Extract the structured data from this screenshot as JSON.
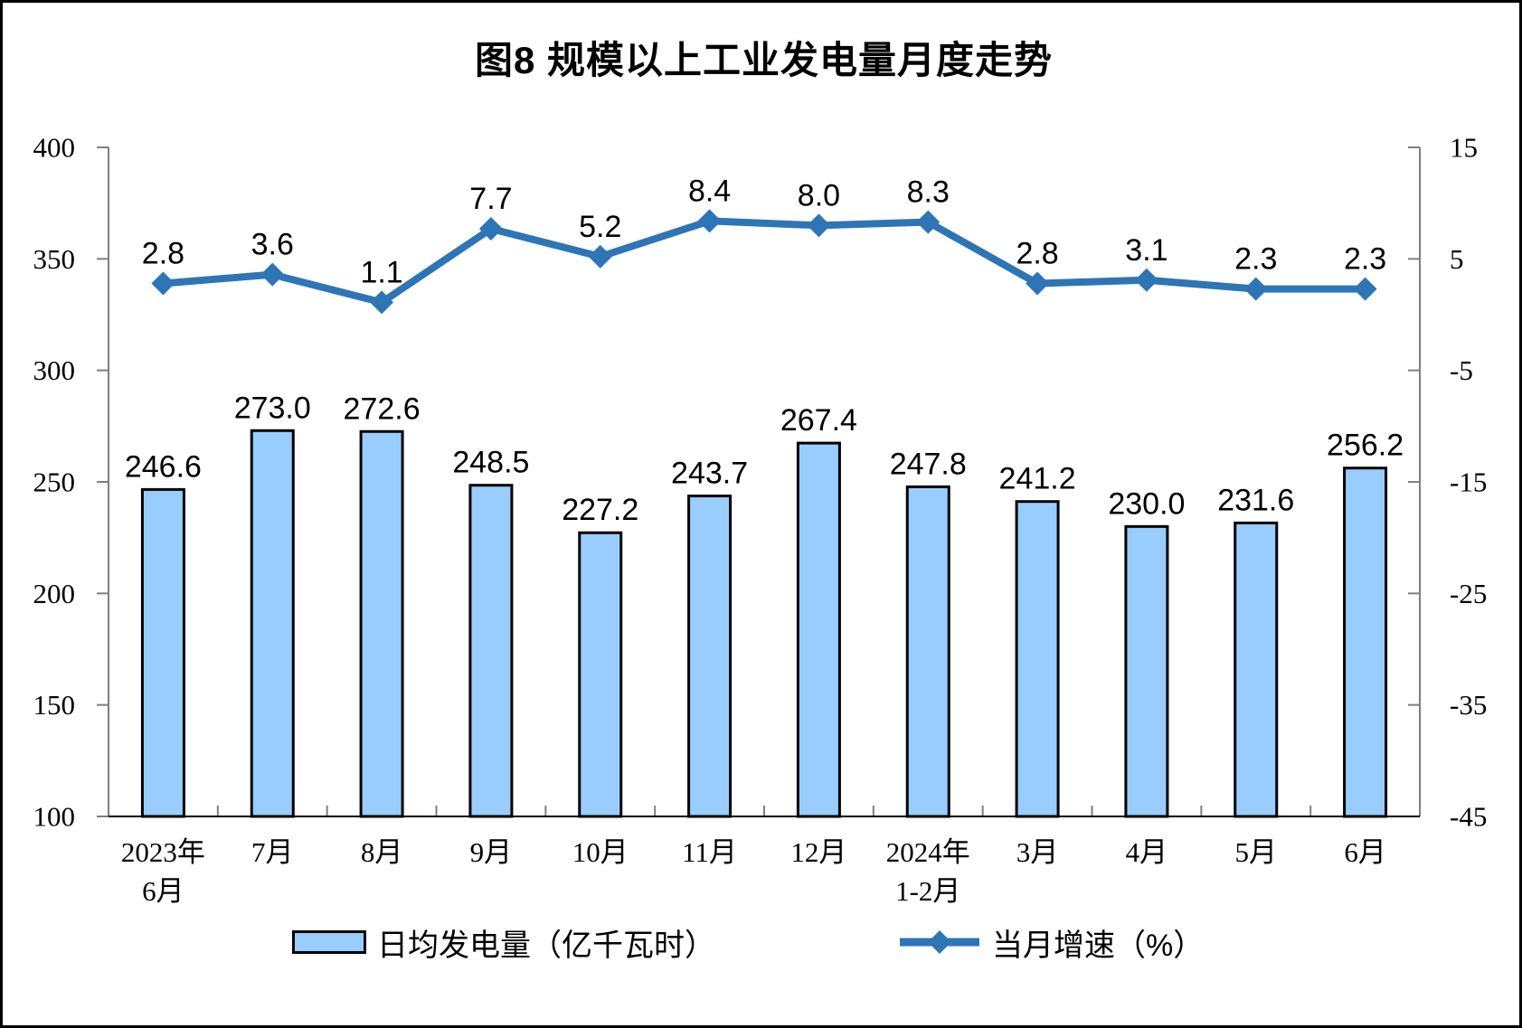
{
  "title": "图8 规模以上工业发电量月度走势",
  "chart_data": {
    "type": "combo",
    "title": "图8 规模以上工业发电量月度走势",
    "xlabel": "",
    "ylabel": "",
    "categories": [
      "2023年\n6月",
      "7月",
      "8月",
      "9月",
      "10月",
      "11月",
      "12月",
      "2024年\n1-2月",
      "3月",
      "4月",
      "5月",
      "6月"
    ],
    "series": [
      {
        "name": "日均发电量（亿千瓦时）",
        "type": "bar",
        "axis": "left",
        "values": [
          246.6,
          273.0,
          272.6,
          248.5,
          227.2,
          243.7,
          267.4,
          247.8,
          241.2,
          230.0,
          231.6,
          256.2
        ]
      },
      {
        "name": "当月增速（%）",
        "type": "line",
        "axis": "right",
        "values": [
          2.8,
          3.6,
          1.1,
          7.7,
          5.2,
          8.4,
          8.0,
          8.3,
          2.8,
          3.1,
          2.3,
          2.3
        ]
      }
    ],
    "left_axis": {
      "min": 100,
      "max": 400,
      "ticks": [
        400,
        350,
        300,
        250,
        200,
        150,
        100
      ]
    },
    "right_axis": {
      "min": -45,
      "max": 15,
      "ticks": [
        15,
        5,
        -5,
        -15,
        -25,
        -35,
        -45
      ]
    },
    "grid": "off",
    "legend_position": "bottom",
    "colors": {
      "bar_fill": "#99CCFF",
      "bar_border": "#000000",
      "line": "#2E75B6",
      "text": "#000000",
      "axis": "#7F7F7F",
      "baseline": "#000000",
      "background": "#FFFFFF"
    }
  }
}
